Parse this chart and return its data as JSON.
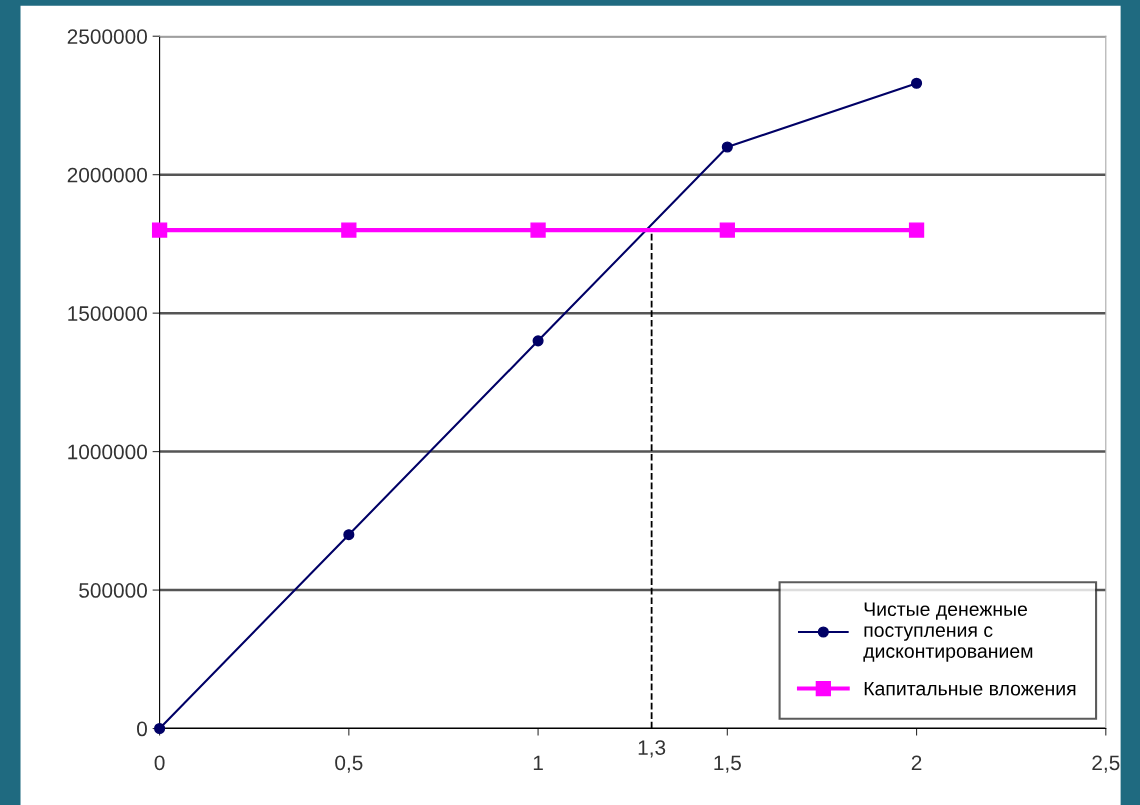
{
  "chart_data": {
    "type": "line",
    "x": [
      0,
      0.5,
      1,
      1.5,
      2
    ],
    "series": [
      {
        "name": "Чистые денежные поступления с дисконтированием",
        "color": "#000066",
        "marker": "circle",
        "values": [
          0,
          700000,
          1400000,
          2100000,
          2330000
        ]
      },
      {
        "name": "Капитальные вложения",
        "color": "#ff00ff",
        "marker": "square",
        "values": [
          1800000,
          1800000,
          1800000,
          1800000,
          1800000
        ]
      }
    ],
    "xlim": [
      0,
      2.5
    ],
    "xticks": [
      0,
      {
        "value": 0.5,
        "label": "0,5"
      },
      1,
      {
        "value": 1.5,
        "label": "1,5"
      },
      2,
      {
        "value": 2.5,
        "label": "2,5"
      }
    ],
    "ylim": [
      0,
      2500000
    ],
    "yticks": [
      0,
      500000,
      1000000,
      1500000,
      2000000,
      2500000
    ],
    "ref_lines": [
      {
        "axis": "x",
        "value": 1.3,
        "label": "1,3",
        "line_style": "dashed",
        "color": "#000000"
      }
    ],
    "grid": "y",
    "legend": "bottom right"
  }
}
